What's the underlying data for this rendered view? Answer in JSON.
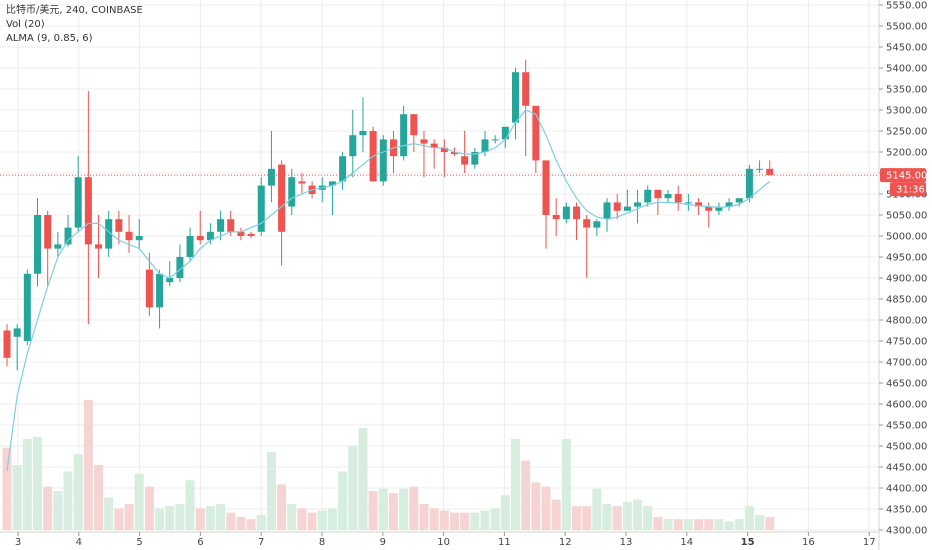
{
  "legend": {
    "symbol": "比特币/美元",
    "interval": "240",
    "exchange": "COINBASE",
    "separator": ", ",
    "volume": "Vol (20)",
    "alma": "ALMA (9, 0.85, 6)"
  },
  "colors": {
    "up": "#26a69a",
    "down": "#ef5350",
    "up_volume": "#d6ede0",
    "down_volume": "#f6d4d4",
    "alma": "#7ecfe0",
    "price_line": "#ef5350",
    "grid": "#ececec"
  },
  "price_label": {
    "value": "5145.00",
    "countdown": "31:36"
  },
  "chart_data": {
    "type": "candlestick",
    "y_axis": {
      "min": 4300,
      "max": 5550,
      "step": 50
    },
    "x_axis": {
      "ticks": [
        "3",
        "4",
        "5",
        "6",
        "7",
        "8",
        "9",
        "10",
        "11",
        "12",
        "13",
        "14",
        "15",
        "16",
        "17"
      ],
      "bold_tick": "15"
    },
    "last_price": 5145,
    "candles": [
      {
        "o": 4775,
        "h": 4790,
        "l": 4690,
        "c": 4710,
        "v": 380
      },
      {
        "o": 4760,
        "h": 4790,
        "l": 4680,
        "c": 4780,
        "v": 300
      },
      {
        "o": 4750,
        "h": 4920,
        "l": 4740,
        "c": 4910,
        "v": 420
      },
      {
        "o": 4910,
        "h": 5090,
        "l": 4880,
        "c": 5050,
        "v": 430
      },
      {
        "o": 5050,
        "h": 5060,
        "l": 4880,
        "c": 4970,
        "v": 200
      },
      {
        "o": 4970,
        "h": 5010,
        "l": 4950,
        "c": 4980,
        "v": 180
      },
      {
        "o": 4980,
        "h": 5050,
        "l": 4975,
        "c": 5020,
        "v": 270
      },
      {
        "o": 5020,
        "h": 5190,
        "l": 5010,
        "c": 5140,
        "v": 350
      },
      {
        "o": 5140,
        "h": 5345,
        "l": 4790,
        "c": 4980,
        "v": 600
      },
      {
        "o": 4980,
        "h": 5050,
        "l": 4900,
        "c": 4970,
        "v": 300
      },
      {
        "o": 4970,
        "h": 5060,
        "l": 4950,
        "c": 5040,
        "v": 150
      },
      {
        "o": 5040,
        "h": 5060,
        "l": 4980,
        "c": 5010,
        "v": 100
      },
      {
        "o": 5010,
        "h": 5050,
        "l": 4960,
        "c": 4990,
        "v": 120
      },
      {
        "o": 4990,
        "h": 5040,
        "l": 4970,
        "c": 5000,
        "v": 260
      },
      {
        "o": 4920,
        "h": 4960,
        "l": 4810,
        "c": 4830,
        "v": 200
      },
      {
        "o": 4830,
        "h": 4920,
        "l": 4780,
        "c": 4910,
        "v": 100
      },
      {
        "o": 4890,
        "h": 4940,
        "l": 4880,
        "c": 4900,
        "v": 110
      },
      {
        "o": 4900,
        "h": 4980,
        "l": 4890,
        "c": 4950,
        "v": 120
      },
      {
        "o": 4950,
        "h": 5020,
        "l": 4940,
        "c": 5000,
        "v": 230
      },
      {
        "o": 5000,
        "h": 5060,
        "l": 4980,
        "c": 4990,
        "v": 100
      },
      {
        "o": 4990,
        "h": 5030,
        "l": 4980,
        "c": 5010,
        "v": 110
      },
      {
        "o": 5010,
        "h": 5060,
        "l": 4990,
        "c": 5040,
        "v": 120
      },
      {
        "o": 5040,
        "h": 5060,
        "l": 5000,
        "c": 5010,
        "v": 80
      },
      {
        "o": 5010,
        "h": 5020,
        "l": 4990,
        "c": 5000,
        "v": 60
      },
      {
        "o": 5005,
        "h": 5010,
        "l": 4995,
        "c": 5000,
        "v": 50
      },
      {
        "o": 5010,
        "h": 5140,
        "l": 5000,
        "c": 5120,
        "v": 70
      },
      {
        "o": 5120,
        "h": 5250,
        "l": 5080,
        "c": 5160,
        "v": 360
      },
      {
        "o": 5170,
        "h": 5180,
        "l": 4930,
        "c": 5010,
        "v": 210
      },
      {
        "o": 5070,
        "h": 5160,
        "l": 5050,
        "c": 5140,
        "v": 120
      },
      {
        "o": 5130,
        "h": 5150,
        "l": 5100,
        "c": 5125,
        "v": 100
      },
      {
        "o": 5120,
        "h": 5130,
        "l": 5090,
        "c": 5100,
        "v": 80
      },
      {
        "o": 5110,
        "h": 5140,
        "l": 5080,
        "c": 5120,
        "v": 90
      },
      {
        "o": 5120,
        "h": 5130,
        "l": 5050,
        "c": 5130,
        "v": 100
      },
      {
        "o": 5130,
        "h": 5200,
        "l": 5110,
        "c": 5190,
        "v": 270
      },
      {
        "o": 5190,
        "h": 5300,
        "l": 5140,
        "c": 5240,
        "v": 390
      },
      {
        "o": 5240,
        "h": 5330,
        "l": 5200,
        "c": 5250,
        "v": 470
      },
      {
        "o": 5250,
        "h": 5260,
        "l": 5130,
        "c": 5130,
        "v": 180
      },
      {
        "o": 5130,
        "h": 5240,
        "l": 5120,
        "c": 5230,
        "v": 190
      },
      {
        "o": 5230,
        "h": 5250,
        "l": 5150,
        "c": 5190,
        "v": 170
      },
      {
        "o": 5190,
        "h": 5310,
        "l": 5180,
        "c": 5290,
        "v": 190
      },
      {
        "o": 5290,
        "h": 5290,
        "l": 5200,
        "c": 5240,
        "v": 200
      },
      {
        "o": 5230,
        "h": 5250,
        "l": 5140,
        "c": 5220,
        "v": 120
      },
      {
        "o": 5220,
        "h": 5230,
        "l": 5160,
        "c": 5210,
        "v": 100
      },
      {
        "o": 5210,
        "h": 5230,
        "l": 5140,
        "c": 5200,
        "v": 90
      },
      {
        "o": 5200,
        "h": 5210,
        "l": 5190,
        "c": 5195,
        "v": 80
      },
      {
        "o": 5190,
        "h": 5250,
        "l": 5150,
        "c": 5170,
        "v": 80
      },
      {
        "o": 5170,
        "h": 5210,
        "l": 5160,
        "c": 5200,
        "v": 80
      },
      {
        "o": 5200,
        "h": 5250,
        "l": 5190,
        "c": 5230,
        "v": 90
      },
      {
        "o": 5230,
        "h": 5240,
        "l": 5220,
        "c": 5230,
        "v": 100
      },
      {
        "o": 5230,
        "h": 5260,
        "l": 5210,
        "c": 5260,
        "v": 160
      },
      {
        "o": 5270,
        "h": 5400,
        "l": 5230,
        "c": 5390,
        "v": 420
      },
      {
        "o": 5390,
        "h": 5420,
        "l": 5190,
        "c": 5310,
        "v": 320
      },
      {
        "o": 5310,
        "h": 5310,
        "l": 5150,
        "c": 5180,
        "v": 220
      },
      {
        "o": 5180,
        "h": 5180,
        "l": 4970,
        "c": 5050,
        "v": 200
      },
      {
        "o": 5050,
        "h": 5090,
        "l": 5000,
        "c": 5040,
        "v": 140
      },
      {
        "o": 5040,
        "h": 5080,
        "l": 5030,
        "c": 5070,
        "v": 420
      },
      {
        "o": 5070,
        "h": 5080,
        "l": 4990,
        "c": 5040,
        "v": 110
      },
      {
        "o": 5040,
        "h": 5050,
        "l": 4900,
        "c": 5020,
        "v": 110
      },
      {
        "o": 5020,
        "h": 5040,
        "l": 5000,
        "c": 5035,
        "v": 190
      },
      {
        "o": 5040,
        "h": 5090,
        "l": 5010,
        "c": 5080,
        "v": 120
      },
      {
        "o": 5080,
        "h": 5100,
        "l": 5040,
        "c": 5060,
        "v": 110
      },
      {
        "o": 5060,
        "h": 5110,
        "l": 5060,
        "c": 5070,
        "v": 130
      },
      {
        "o": 5070,
        "h": 5110,
        "l": 5030,
        "c": 5080,
        "v": 140
      },
      {
        "o": 5080,
        "h": 5120,
        "l": 5070,
        "c": 5110,
        "v": 110
      },
      {
        "o": 5110,
        "h": 5110,
        "l": 5050,
        "c": 5090,
        "v": 60
      },
      {
        "o": 5090,
        "h": 5110,
        "l": 5080,
        "c": 5100,
        "v": 50
      },
      {
        "o": 5100,
        "h": 5120,
        "l": 5060,
        "c": 5080,
        "v": 50
      },
      {
        "o": 5080,
        "h": 5100,
        "l": 5060,
        "c": 5080,
        "v": 50
      },
      {
        "o": 5080,
        "h": 5090,
        "l": 5050,
        "c": 5070,
        "v": 50
      },
      {
        "o": 5070,
        "h": 5080,
        "l": 5020,
        "c": 5060,
        "v": 50
      },
      {
        "o": 5060,
        "h": 5080,
        "l": 5050,
        "c": 5070,
        "v": 50
      },
      {
        "o": 5070,
        "h": 5090,
        "l": 5060,
        "c": 5080,
        "v": 40
      },
      {
        "o": 5080,
        "h": 5090,
        "l": 5070,
        "c": 5090,
        "v": 50
      },
      {
        "o": 5090,
        "h": 5170,
        "l": 5080,
        "c": 5160,
        "v": 110
      },
      {
        "o": 5160,
        "h": 5180,
        "l": 5150,
        "c": 5160,
        "v": 70
      },
      {
        "o": 5160,
        "h": 5180,
        "l": 5145,
        "c": 5145,
        "v": 60
      }
    ],
    "alma": [
      [
        0,
        4440
      ],
      [
        1,
        4620
      ],
      [
        2,
        4720
      ],
      [
        3,
        4800
      ],
      [
        4,
        4880
      ],
      [
        5,
        4950
      ],
      [
        6,
        4990
      ],
      [
        7,
        5010
      ],
      [
        8,
        5030
      ],
      [
        9,
        5030
      ],
      [
        10,
        5010
      ],
      [
        11,
        4990
      ],
      [
        12,
        4980
      ],
      [
        13,
        4970
      ],
      [
        14,
        4940
      ],
      [
        15,
        4910
      ],
      [
        16,
        4900
      ],
      [
        17,
        4920
      ],
      [
        18,
        4940
      ],
      [
        19,
        4970
      ],
      [
        20,
        4990
      ],
      [
        21,
        5000
      ],
      [
        22,
        5010
      ],
      [
        23,
        5010
      ],
      [
        24,
        5020
      ],
      [
        25,
        5030
      ],
      [
        26,
        5050
      ],
      [
        27,
        5070
      ],
      [
        28,
        5090
      ],
      [
        29,
        5100
      ],
      [
        30,
        5110
      ],
      [
        31,
        5115
      ],
      [
        32,
        5120
      ],
      [
        33,
        5130
      ],
      [
        34,
        5150
      ],
      [
        35,
        5170
      ],
      [
        36,
        5190
      ],
      [
        37,
        5200
      ],
      [
        38,
        5210
      ],
      [
        39,
        5215
      ],
      [
        40,
        5220
      ],
      [
        41,
        5215
      ],
      [
        42,
        5210
      ],
      [
        43,
        5210
      ],
      [
        44,
        5200
      ],
      [
        45,
        5195
      ],
      [
        46,
        5195
      ],
      [
        47,
        5200
      ],
      [
        48,
        5210
      ],
      [
        49,
        5230
      ],
      [
        50,
        5270
      ],
      [
        51,
        5300
      ],
      [
        52,
        5290
      ],
      [
        53,
        5240
      ],
      [
        54,
        5180
      ],
      [
        55,
        5130
      ],
      [
        56,
        5090
      ],
      [
        57,
        5060
      ],
      [
        58,
        5045
      ],
      [
        59,
        5040
      ],
      [
        60,
        5045
      ],
      [
        61,
        5055
      ],
      [
        62,
        5065
      ],
      [
        63,
        5075
      ],
      [
        64,
        5080
      ],
      [
        65,
        5080
      ],
      [
        66,
        5078
      ],
      [
        67,
        5075
      ],
      [
        68,
        5072
      ],
      [
        69,
        5070
      ],
      [
        70,
        5068
      ],
      [
        71,
        5070
      ],
      [
        72,
        5075
      ],
      [
        73,
        5090
      ],
      [
        74,
        5110
      ],
      [
        75,
        5130
      ]
    ]
  }
}
